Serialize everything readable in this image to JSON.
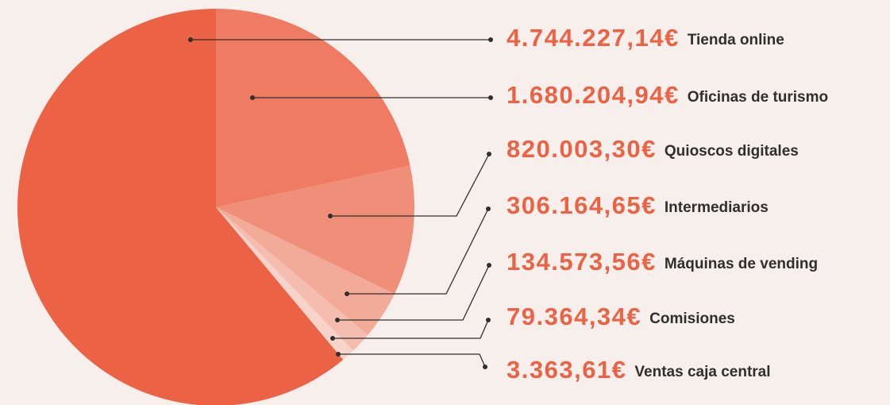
{
  "chart_data": {
    "type": "pie",
    "categories": [
      "Tienda online",
      "Oficinas de turismo",
      "Quioscos digitales",
      "Intermediarios",
      "Máquinas de vending",
      "Comisiones",
      "Ventas caja central"
    ],
    "values": [
      4744227.14,
      1680204.94,
      820003.3,
      306164.65,
      134573.56,
      79364.34,
      3363.61
    ],
    "value_labels": [
      "4.744.227,14€",
      "1.680.204,94€",
      "820.003,30€",
      "306.164,65€",
      "134.573,56€",
      "79.364,34€",
      "3.363,61€"
    ],
    "colors": [
      "#ec6244",
      "#ef7b63",
      "#f08f79",
      "#f2aa99",
      "#f4bdb0",
      "#f7d3c9",
      "#f9e2dc"
    ]
  }
}
